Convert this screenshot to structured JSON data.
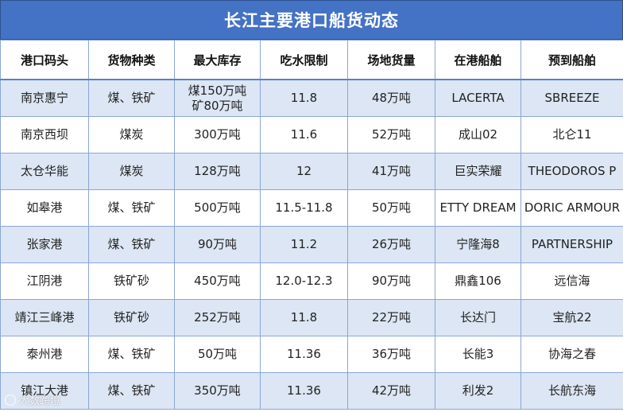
{
  "title": "长江主要港口船货动态",
  "columns": [
    "港口码头",
    "货物种类",
    "最大库存",
    "吃水限制",
    "场地货量",
    "在港船舶",
    "预到船舶"
  ],
  "rows": [
    {
      "port": "南京惠宁",
      "cargo": "煤、铁矿",
      "max_stock": "煤150万吨\n矿80万吨",
      "draft": "11.8",
      "yard": "48万吨",
      "in_port": "LACERTA",
      "expected": "SBREEZE"
    },
    {
      "port": "南京西坝",
      "cargo": "煤炭",
      "max_stock": "300万吨",
      "draft": "11.6",
      "yard": "52万吨",
      "in_port": "成山02",
      "expected": "北仑11"
    },
    {
      "port": "太仓华能",
      "cargo": "煤炭",
      "max_stock": "128万吨",
      "draft": "12",
      "yard": "41万吨",
      "in_port": "巨实荣耀",
      "expected": "THEODOROS P"
    },
    {
      "port": "如皋港",
      "cargo": "煤、铁矿",
      "max_stock": "500万吨",
      "draft": "11.5-11.8",
      "yard": "50万吨",
      "in_port": "ETTY DREAM",
      "expected": "DORIC ARMOUR"
    },
    {
      "port": "张家港",
      "cargo": "煤、铁矿",
      "max_stock": "90万吨",
      "draft": "11.2",
      "yard": "26万吨",
      "in_port": "宁隆海8",
      "expected": "PARTNERSHIP"
    },
    {
      "port": "江阴港",
      "cargo": "铁矿砂",
      "max_stock": "450万吨",
      "draft": "12.0-12.3",
      "yard": "90万吨",
      "in_port": "鼎鑫106",
      "expected": "远信海"
    },
    {
      "port": "靖江三峰港",
      "cargo": "铁矿砂",
      "max_stock": "252万吨",
      "draft": "11.8",
      "yard": "22万吨",
      "in_port": "长达门",
      "expected": "宝航22"
    },
    {
      "port": "泰州港",
      "cargo": "煤、铁矿",
      "max_stock": "50万吨",
      "draft": "11.36",
      "yard": "36万吨",
      "in_port": "长能3",
      "expected": "协海之春"
    },
    {
      "port": "镇江大港",
      "cargo": "煤、铁矿",
      "max_stock": "350万吨",
      "draft": "11.36",
      "yard": "42万吨",
      "in_port": "利发2",
      "expected": "长航东海"
    }
  ],
  "colors": {
    "header_bg": "#4472c4",
    "band": "#dce6f4",
    "border": "#8aa6d6"
  },
  "watermark": "大数跨境"
}
